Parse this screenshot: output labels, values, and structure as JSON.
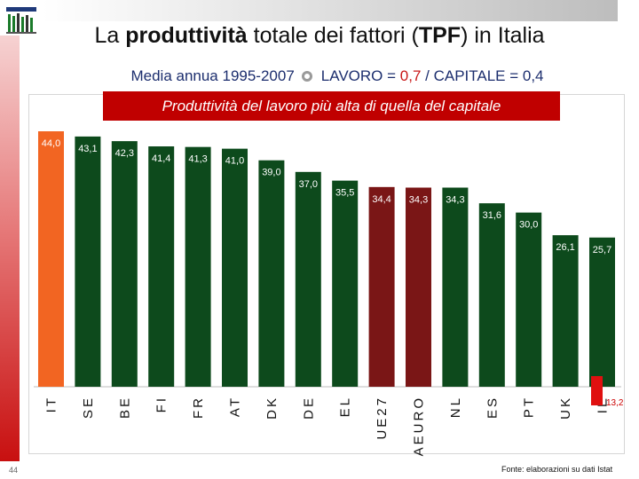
{
  "slide": {
    "title_pre": "La ",
    "title_bold": "produttività",
    "title_mid": " totale dei fattori (",
    "title_tpf": "TPF",
    "title_post": ") in Italia",
    "subtitle_left": "Media annua 1995-2007",
    "subtitle_lavoro": "LAVORO = ",
    "subtitle_lavoro_val": "0,7",
    "subtitle_capitale": " / CAPITALE = 0,4",
    "banner": "Produttività del lavoro più alta di quella del capitale",
    "page_number": "44",
    "source": "Fonte: elaborazioni su dati Istat",
    "marker_value": "13,2"
  },
  "colors": {
    "bar_default": "#0d4a1c",
    "bar_highlight_it": "#f26522",
    "bar_highlight_eu": "#7a1616",
    "banner": "#c00000",
    "marker": "#e01010"
  },
  "chart_data": {
    "type": "bar",
    "categories": [
      "IT",
      "SE",
      "BE",
      "FI",
      "FR",
      "AT",
      "DK",
      "DE",
      "EL",
      "Ue27",
      "Aeuro",
      "NL",
      "ES",
      "PT",
      "UK",
      "IE"
    ],
    "values": [
      44.0,
      43.1,
      42.3,
      41.4,
      41.3,
      41.0,
      39.0,
      37.0,
      35.5,
      34.4,
      34.3,
      34.3,
      31.6,
      30.0,
      26.1,
      25.7
    ],
    "value_labels": [
      "44,0",
      "43,1",
      "42,3",
      "41,4",
      "41,3",
      "41,0",
      "39,0",
      "37,0",
      "35,5",
      "34,4",
      "34,3",
      "34,3",
      "31,6",
      "30,0",
      "26,1",
      "25,7"
    ],
    "highlight": {
      "IT": "bar_highlight_it",
      "Ue27": "bar_highlight_eu",
      "Aeuro": "bar_highlight_eu"
    },
    "ylim": [
      0,
      44
    ],
    "grid": false,
    "title": "",
    "xlabel": "",
    "ylabel": ""
  }
}
